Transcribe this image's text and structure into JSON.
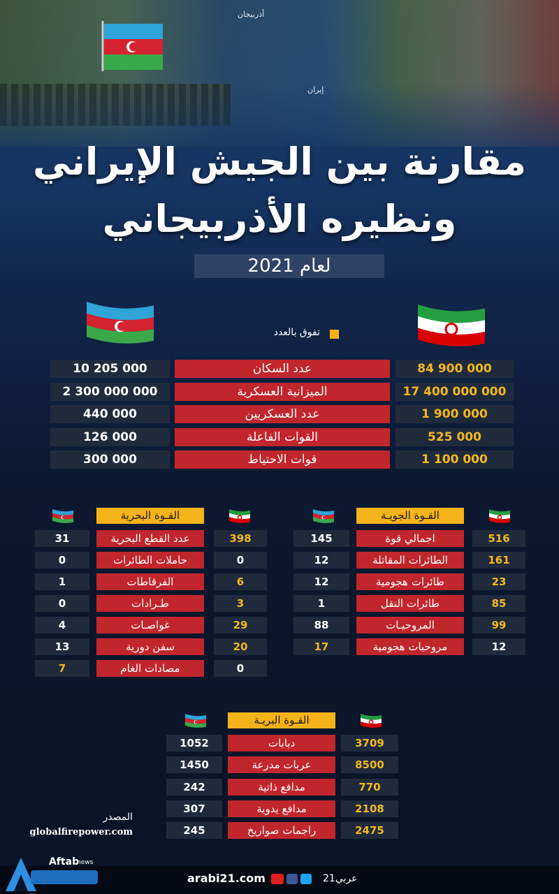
{
  "header": {
    "title": [
      "مقارنة بين الجيش الإيراني",
      "ونظيره الأذربيجاني"
    ],
    "year": "لعام 2021"
  },
  "map_labels": [
    "أذربيجان",
    "إيران"
  ],
  "legend": "تفوق بالعدد",
  "highlight_color": "#f5b81a",
  "main": {
    "rows": [
      {
        "label": "عدد السكان",
        "values": [
          "84 900 000",
          "10 205 000"
        ],
        "highlight": [
          true,
          false
        ]
      },
      {
        "label": "الميزانية العسكرية",
        "values": [
          "17 400 000 000",
          "2 300 000 000"
        ],
        "highlight": [
          true,
          false
        ]
      },
      {
        "label": "عدد العسكريين",
        "values": [
          "1 900 000",
          "440 000"
        ],
        "highlight": [
          true,
          false
        ]
      },
      {
        "label": "القوات الفاعلة",
        "values": [
          "525 000",
          "126 000"
        ],
        "highlight": [
          true,
          false
        ]
      },
      {
        "label": "قوات الاحتياط",
        "values": [
          "1 100 000",
          "300 000"
        ],
        "highlight": [
          true,
          false
        ]
      }
    ]
  },
  "air": {
    "title": "القـوة الجويـة",
    "rows": [
      {
        "label": "اجمالي قوة",
        "values": [
          "516",
          "145"
        ],
        "highlight": [
          true,
          false
        ]
      },
      {
        "label": "الطائرات المقاتلة",
        "values": [
          "161",
          "12"
        ],
        "highlight": [
          true,
          false
        ]
      },
      {
        "label": "طائرات هجومية",
        "values": [
          "23",
          "12"
        ],
        "highlight": [
          true,
          false
        ]
      },
      {
        "label": "طائرات النقل",
        "values": [
          "85",
          "1"
        ],
        "highlight": [
          true,
          false
        ]
      },
      {
        "label": "المروحيـات",
        "values": [
          "99",
          "88"
        ],
        "highlight": [
          true,
          false
        ]
      },
      {
        "label": "مروحيات هجومية",
        "values": [
          "12",
          "17"
        ],
        "highlight": [
          false,
          true
        ]
      }
    ]
  },
  "naval": {
    "title": "القـوة البحرية",
    "rows": [
      {
        "label": "عدد القطع البحرية",
        "values": [
          "398",
          "31"
        ],
        "highlight": [
          true,
          false
        ]
      },
      {
        "label": "حاملات الطائرات",
        "values": [
          "0",
          "0"
        ],
        "highlight": [
          false,
          false
        ]
      },
      {
        "label": "الفرقاطات",
        "values": [
          "6",
          "1"
        ],
        "highlight": [
          true,
          false
        ]
      },
      {
        "label": "طـرادات",
        "values": [
          "3",
          "0"
        ],
        "highlight": [
          true,
          false
        ]
      },
      {
        "label": "غواصـات",
        "values": [
          "29",
          "4"
        ],
        "highlight": [
          true,
          false
        ]
      },
      {
        "label": "سفن دورية",
        "values": [
          "20",
          "13"
        ],
        "highlight": [
          true,
          false
        ]
      },
      {
        "label": "مصادات الغام",
        "values": [
          "0",
          "7"
        ],
        "highlight": [
          false,
          true
        ]
      }
    ]
  },
  "land": {
    "title": "القـوة البريـة",
    "rows": [
      {
        "label": "دبابات",
        "values": [
          "3709",
          "1052"
        ],
        "highlight": [
          true,
          false
        ]
      },
      {
        "label": "عربات مدرعة",
        "values": [
          "8500",
          "1450"
        ],
        "highlight": [
          true,
          false
        ]
      },
      {
        "label": "مدافع ذاتية",
        "values": [
          "770",
          "242"
        ],
        "highlight": [
          true,
          false
        ]
      },
      {
        "label": "مدافع يدوية",
        "values": [
          "2108",
          "307"
        ],
        "highlight": [
          true,
          false
        ]
      },
      {
        "label": "راجمات صواريخ",
        "values": [
          "2475",
          "245"
        ],
        "highlight": [
          true,
          false
        ]
      }
    ]
  },
  "source": {
    "label": "المصدر",
    "url": "globalfirepower.com"
  },
  "footer": {
    "site": "arabi21.com",
    "brand": "عربي21",
    "watermark": [
      "Aftab",
      "news"
    ]
  }
}
